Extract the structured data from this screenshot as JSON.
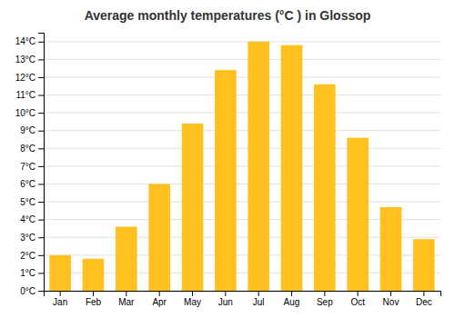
{
  "chart_data": {
    "type": "bar",
    "title": "Average monthly temperatures (°C ) in Glossop",
    "categories": [
      "Jan",
      "Feb",
      "Mar",
      "Apr",
      "May",
      "Jun",
      "Jul",
      "Aug",
      "Sep",
      "Oct",
      "Nov",
      "Dec"
    ],
    "values": [
      2.0,
      1.8,
      3.6,
      6.0,
      9.4,
      12.4,
      14.0,
      13.8,
      11.6,
      8.6,
      4.7,
      2.9
    ],
    "color": "#FFC020",
    "ylim": [
      0,
      14.5
    ],
    "yticks": [
      {
        "value": 0,
        "label": "0°C"
      },
      {
        "value": 1,
        "label": "1°C"
      },
      {
        "value": 2,
        "label": "2°C"
      },
      {
        "value": 3,
        "label": "3°C"
      },
      {
        "value": 4,
        "label": "4°C"
      },
      {
        "value": 5,
        "label": "5°C"
      },
      {
        "value": 6,
        "label": "6°C"
      },
      {
        "value": 7,
        "label": "7°C"
      },
      {
        "value": 8,
        "label": "8°C"
      },
      {
        "value": 9,
        "label": "9°C"
      },
      {
        "value": 10,
        "label": "10°C"
      },
      {
        "value": 11,
        "label": "11°C"
      },
      {
        "value": 12,
        "label": "12°C"
      },
      {
        "value": 13,
        "label": "13°C"
      },
      {
        "value": 14,
        "label": "14°C"
      }
    ],
    "grid": true
  }
}
